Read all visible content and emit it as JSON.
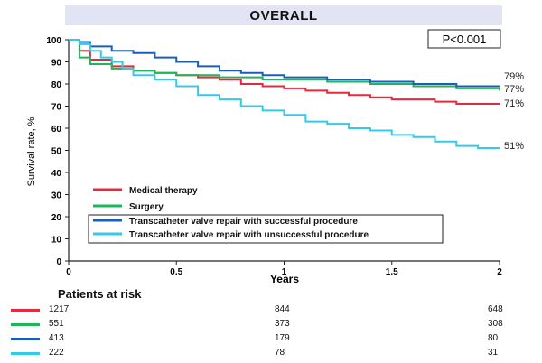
{
  "chart_data": {
    "type": "line",
    "title": "OVERALL",
    "pvalue": "P<0.001",
    "xlabel": "Years",
    "ylabel": "Survival rate, %",
    "xlim": [
      0,
      2
    ],
    "ylim": [
      0,
      100
    ],
    "x_ticks": [
      "0",
      "0.5",
      "1",
      "1.5",
      "2"
    ],
    "y_ticks": [
      "0",
      "10",
      "20",
      "30",
      "40",
      "50",
      "60",
      "70",
      "80",
      "90",
      "100"
    ],
    "legend_position": "bottom-left",
    "series": [
      {
        "name": "Medical therapy",
        "color": "#e8283c",
        "end_label": "71%",
        "x": [
          0,
          0.05,
          0.1,
          0.2,
          0.3,
          0.4,
          0.5,
          0.6,
          0.7,
          0.8,
          0.9,
          1.0,
          1.1,
          1.2,
          1.3,
          1.4,
          1.5,
          1.6,
          1.7,
          1.8,
          1.9,
          2.0
        ],
        "y": [
          100,
          95,
          91,
          88,
          86,
          85,
          84,
          83,
          82,
          80,
          79,
          78,
          77,
          76,
          75,
          74,
          73,
          73,
          72,
          71,
          71,
          71
        ]
      },
      {
        "name": "Surgery",
        "color": "#1fb55a",
        "end_label": "77%",
        "x": [
          0,
          0.05,
          0.1,
          0.2,
          0.3,
          0.4,
          0.5,
          0.6,
          0.7,
          0.8,
          0.9,
          1.0,
          1.1,
          1.2,
          1.3,
          1.4,
          1.5,
          1.6,
          1.7,
          1.8,
          1.9,
          2.0
        ],
        "y": [
          100,
          92,
          89,
          87,
          86,
          85,
          84,
          84,
          83,
          83,
          82,
          82,
          82,
          81,
          81,
          80,
          80,
          79,
          79,
          78,
          78,
          77
        ]
      },
      {
        "name": "Transcatheter valve repair with successful procedure",
        "color": "#1a5dbb",
        "end_label": "79%",
        "x": [
          0,
          0.05,
          0.1,
          0.2,
          0.3,
          0.4,
          0.5,
          0.6,
          0.7,
          0.8,
          0.9,
          1.0,
          1.1,
          1.2,
          1.3,
          1.4,
          1.5,
          1.6,
          1.7,
          1.8,
          1.9,
          2.0
        ],
        "y": [
          100,
          99,
          97,
          95,
          94,
          92,
          90,
          88,
          86,
          85,
          84,
          83,
          83,
          82,
          82,
          81,
          81,
          80,
          80,
          79,
          79,
          79
        ]
      },
      {
        "name": "Transcatheter valve repair with unsuccessful procedure",
        "color": "#35c9e8",
        "end_label": "51%",
        "x": [
          0,
          0.05,
          0.1,
          0.15,
          0.2,
          0.25,
          0.3,
          0.4,
          0.5,
          0.6,
          0.7,
          0.8,
          0.9,
          1.0,
          1.1,
          1.2,
          1.3,
          1.4,
          1.5,
          1.6,
          1.7,
          1.8,
          1.9,
          2.0
        ],
        "y": [
          100,
          98,
          95,
          92,
          90,
          87,
          84,
          82,
          79,
          75,
          73,
          70,
          68,
          66,
          63,
          62,
          60,
          59,
          57,
          56,
          54,
          52,
          51,
          51
        ]
      }
    ]
  },
  "risk_table": {
    "title": "Patients at risk",
    "rows": [
      {
        "color": "#e8283c",
        "values": [
          "1217",
          "844",
          "648"
        ]
      },
      {
        "color": "#1fb55a",
        "values": [
          "551",
          "373",
          "308"
        ]
      },
      {
        "color": "#1a5dbb",
        "values": [
          "413",
          "179",
          "80"
        ]
      },
      {
        "color": "#35c9e8",
        "values": [
          "222",
          "78",
          "31"
        ]
      }
    ]
  }
}
